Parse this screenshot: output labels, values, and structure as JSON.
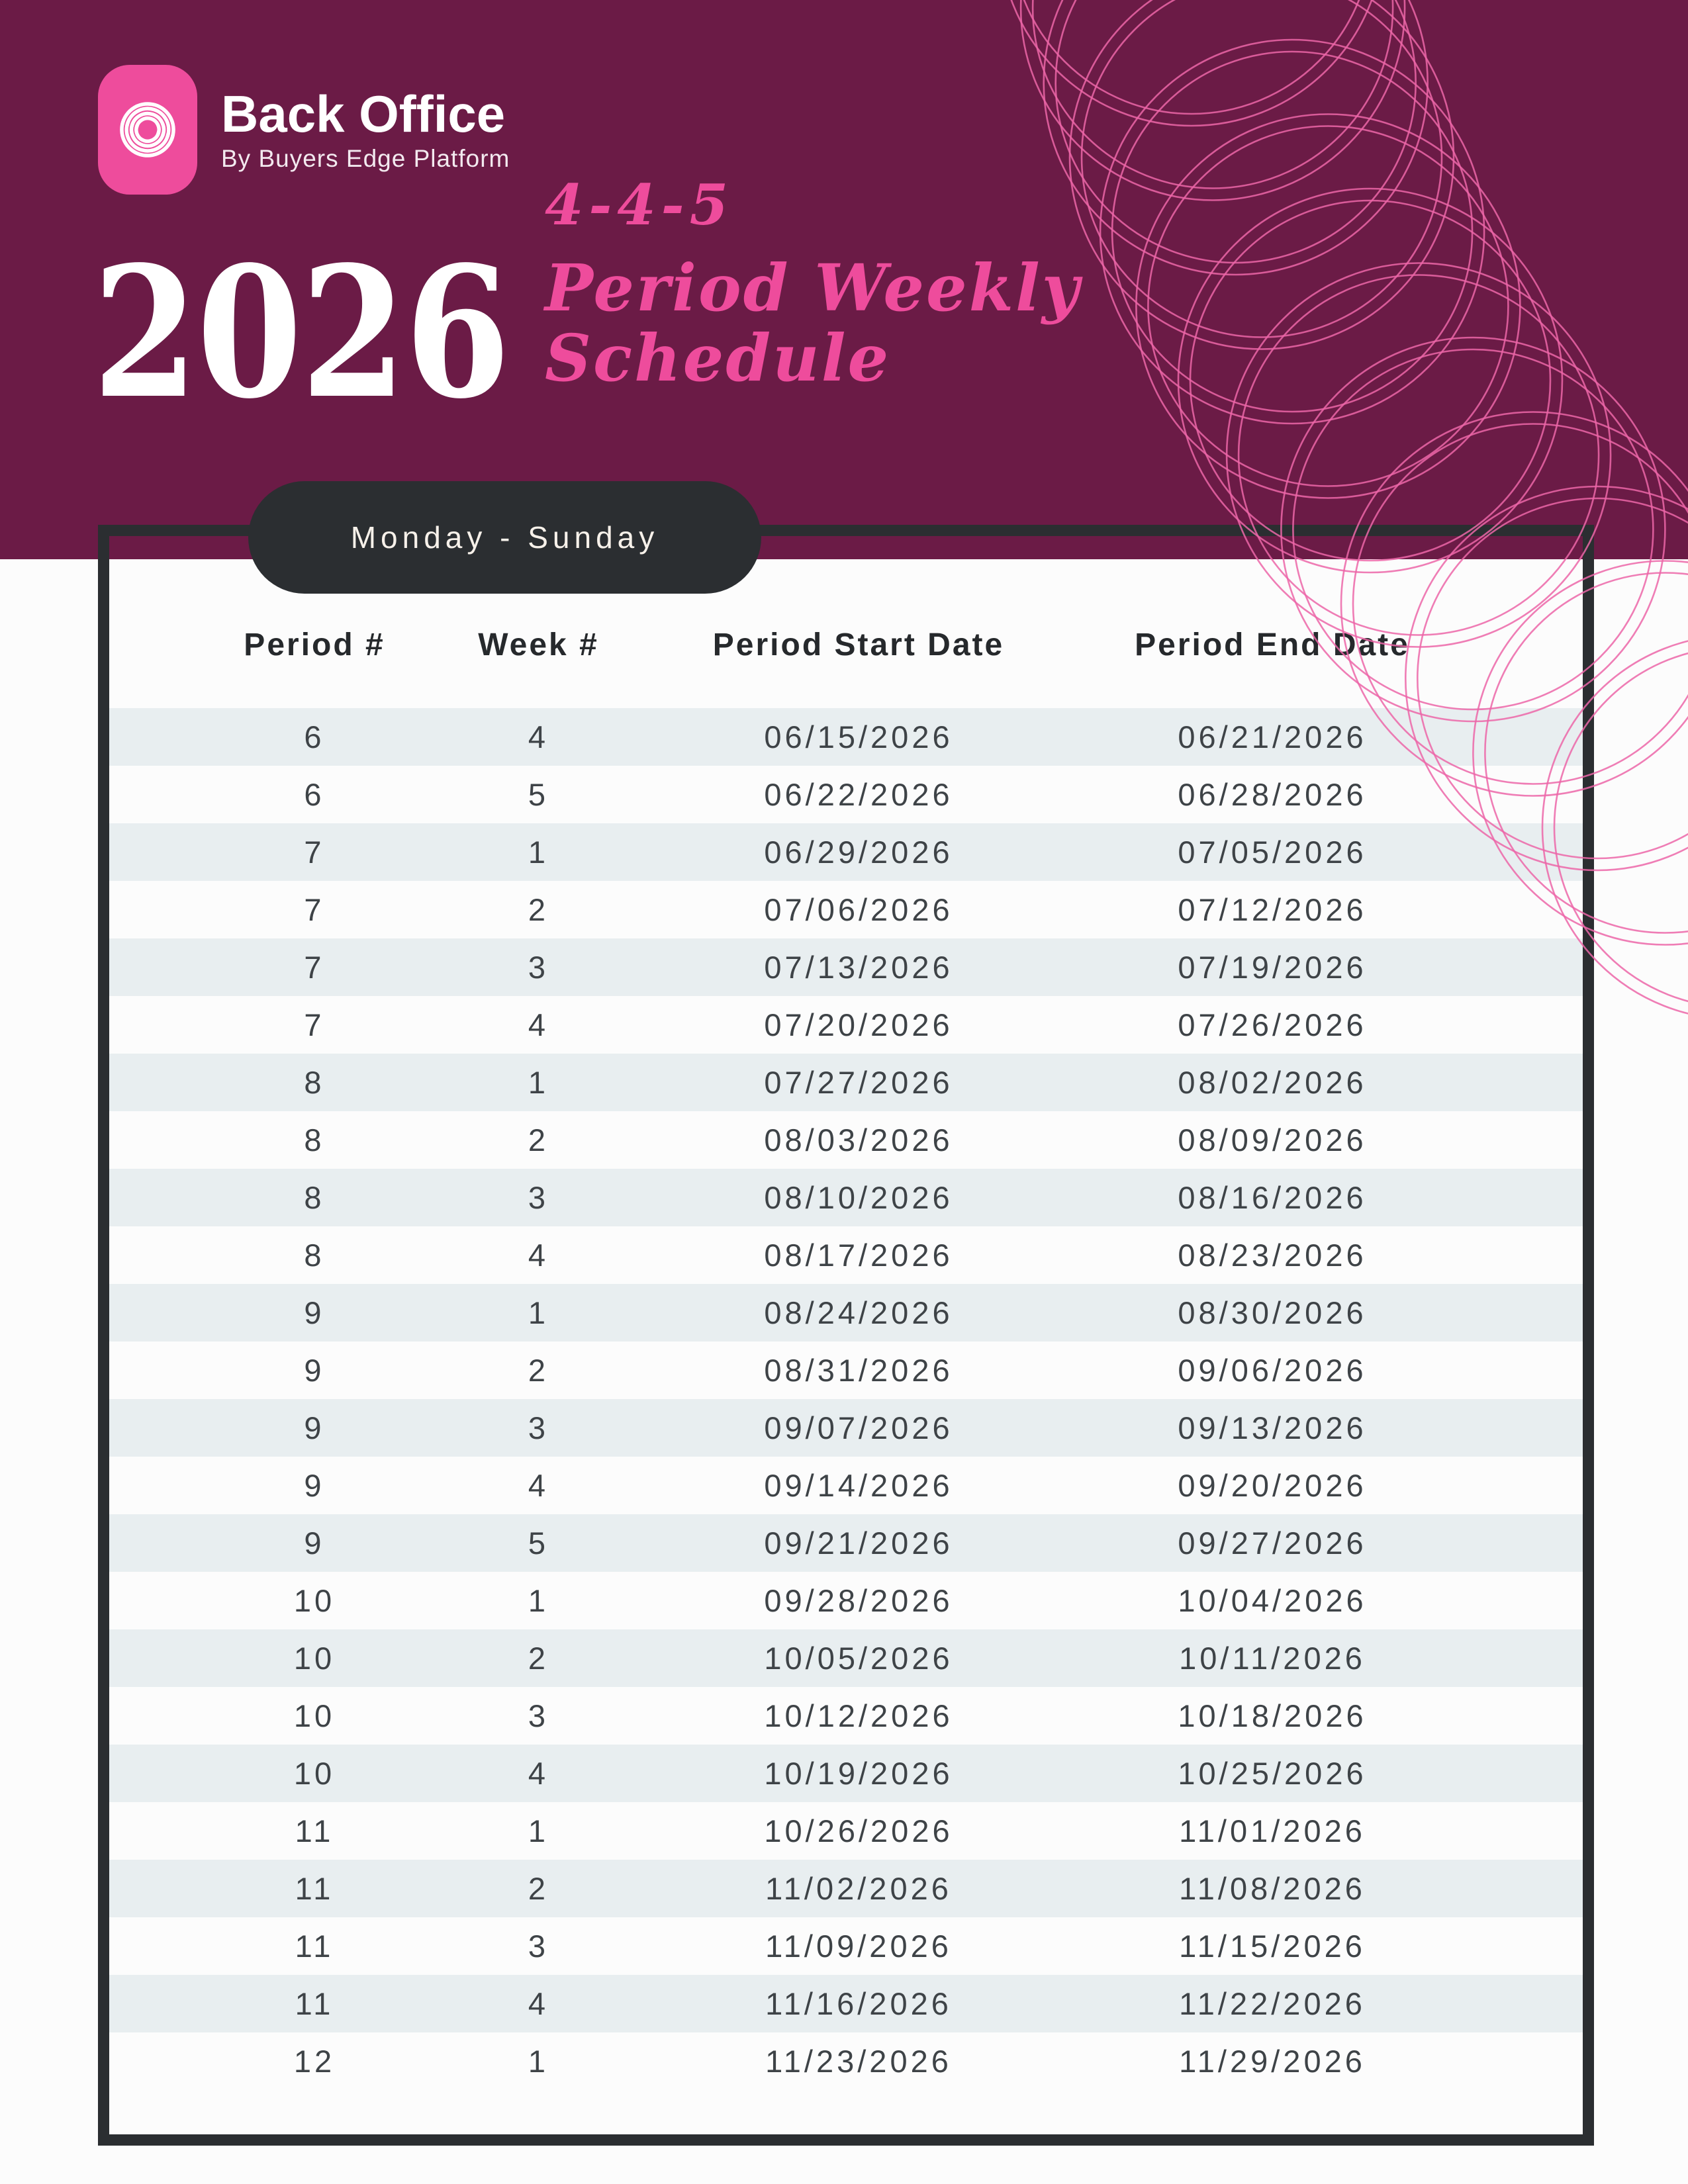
{
  "brand": {
    "name": "Back Office",
    "tagline": "By Buyers Edge Platform",
    "icon": "swirl-icon"
  },
  "hero": {
    "year": "2026",
    "title_top": "4-4-5",
    "title_line1": "Period Weekly",
    "title_line2": "Schedule"
  },
  "schedule_pill": {
    "label": "Monday - Sunday"
  },
  "table": {
    "headers": [
      "Period #",
      "Week #",
      "Period Start Date",
      "Period End Date"
    ],
    "rows": [
      [
        "6",
        "4",
        "06/15/2026",
        "06/21/2026"
      ],
      [
        "6",
        "5",
        "06/22/2026",
        "06/28/2026"
      ],
      [
        "7",
        "1",
        "06/29/2026",
        "07/05/2026"
      ],
      [
        "7",
        "2",
        "07/06/2026",
        "07/12/2026"
      ],
      [
        "7",
        "3",
        "07/13/2026",
        "07/19/2026"
      ],
      [
        "7",
        "4",
        "07/20/2026",
        "07/26/2026"
      ],
      [
        "8",
        "1",
        "07/27/2026",
        "08/02/2026"
      ],
      [
        "8",
        "2",
        "08/03/2026",
        "08/09/2026"
      ],
      [
        "8",
        "3",
        "08/10/2026",
        "08/16/2026"
      ],
      [
        "8",
        "4",
        "08/17/2026",
        "08/23/2026"
      ],
      [
        "9",
        "1",
        "08/24/2026",
        "08/30/2026"
      ],
      [
        "9",
        "2",
        "08/31/2026",
        "09/06/2026"
      ],
      [
        "9",
        "3",
        "09/07/2026",
        "09/13/2026"
      ],
      [
        "9",
        "4",
        "09/14/2026",
        "09/20/2026"
      ],
      [
        "9",
        "5",
        "09/21/2026",
        "09/27/2026"
      ],
      [
        "10",
        "1",
        "09/28/2026",
        "10/04/2026"
      ],
      [
        "10",
        "2",
        "10/05/2026",
        "10/11/2026"
      ],
      [
        "10",
        "3",
        "10/12/2026",
        "10/18/2026"
      ],
      [
        "10",
        "4",
        "10/19/2026",
        "10/25/2026"
      ],
      [
        "11",
        "1",
        "10/26/2026",
        "11/01/2026"
      ],
      [
        "11",
        "2",
        "11/02/2026",
        "11/08/2026"
      ],
      [
        "11",
        "3",
        "11/09/2026",
        "11/15/2026"
      ],
      [
        "11",
        "4",
        "11/16/2026",
        "11/22/2026"
      ],
      [
        "12",
        "1",
        "11/23/2026",
        "11/29/2026"
      ]
    ]
  },
  "colors": {
    "burgundy": "#6b1b46",
    "pink": "#ee4c9c",
    "spiral_pink": "#ec66a8",
    "dark": "#2b2e31",
    "alt_row": "#e8eef0",
    "page_bg": "#fcfcfc"
  }
}
